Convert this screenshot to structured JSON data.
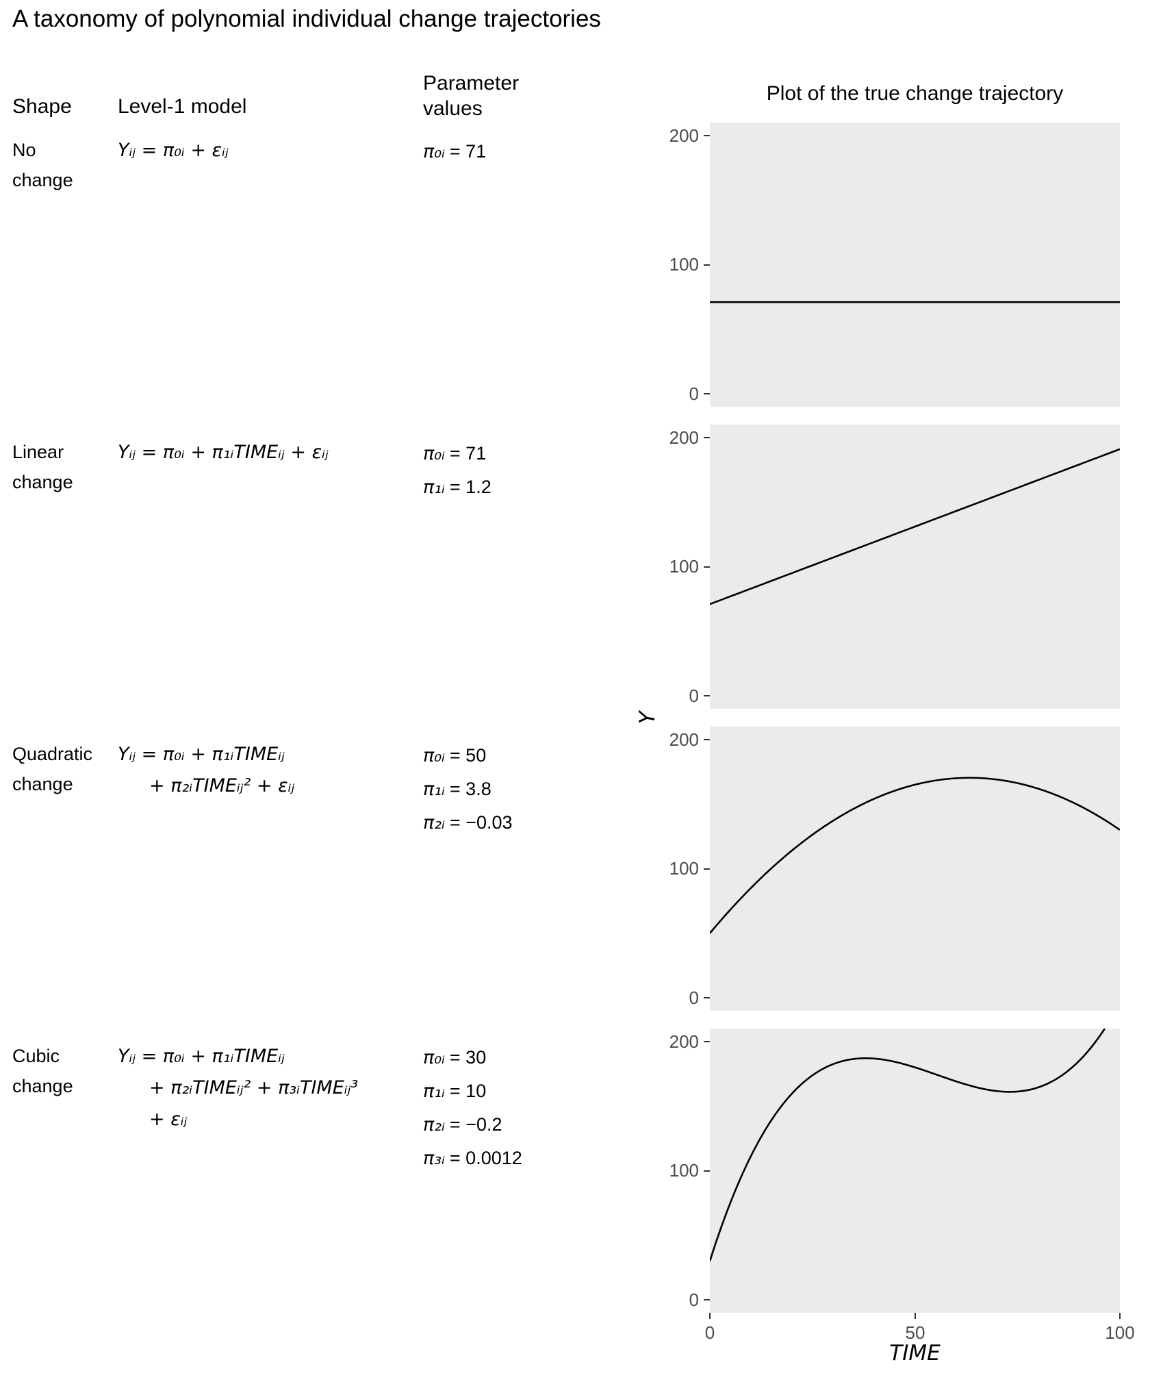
{
  "title": "A taxonomy of polynomial individual change trajectories",
  "headers": {
    "shape": "Shape",
    "model": "Level-1 model",
    "params_line1": "Parameter",
    "params_line2": "values"
  },
  "rows": [
    {
      "shape": "No change",
      "model": [
        "Yᵢⱼ = π₀ᵢ + εᵢⱼ"
      ],
      "params": [
        {
          "sym": "π₀ᵢ",
          "val": "= 71"
        }
      ]
    },
    {
      "shape": "Linear change",
      "model": [
        "Yᵢⱼ = π₀ᵢ + π₁ᵢTIMEᵢⱼ + εᵢⱼ"
      ],
      "params": [
        {
          "sym": "π₀ᵢ",
          "val": "= 71"
        },
        {
          "sym": "π₁ᵢ",
          "val": "= 1.2"
        }
      ]
    },
    {
      "shape": "Quadratic change",
      "model": [
        "Yᵢⱼ = π₀ᵢ + π₁ᵢTIMEᵢⱼ",
        "+ π₂ᵢTIMEᵢⱼ² + εᵢⱼ"
      ],
      "params": [
        {
          "sym": "π₀ᵢ",
          "val": "= 50"
        },
        {
          "sym": "π₁ᵢ",
          "val": "= 3.8"
        },
        {
          "sym": "π₂ᵢ",
          "val": "= −0.03"
        }
      ]
    },
    {
      "shape": "Cubic change",
      "model": [
        "Yᵢⱼ = π₀ᵢ + π₁ᵢTIMEᵢⱼ",
        "+ π₂ᵢTIMEᵢⱼ² + π₃ᵢTIMEᵢⱼ³",
        "+ εᵢⱼ"
      ],
      "params": [
        {
          "sym": "π₀ᵢ",
          "val": "= 30"
        },
        {
          "sym": "π₁ᵢ",
          "val": "= 10"
        },
        {
          "sym": "π₂ᵢ",
          "val": "= −0.2"
        },
        {
          "sym": "π₃ᵢ",
          "val": "= 0.0012"
        }
      ]
    }
  ],
  "plot": {
    "title": "Plot of the true change trajectory",
    "xlabel": "TIME",
    "ylabel": "Y",
    "x_tick_labels": [
      "0",
      "50",
      "100"
    ],
    "y_tick_labels": [
      "200",
      "100",
      "0"
    ],
    "x_domain": [
      0,
      100
    ],
    "y_domain": [
      -10,
      210
    ],
    "panel_bg": "#EBEBEB",
    "line_color": "#000000",
    "tick_color": "#333333",
    "tick_label_color": "#4D4D4D"
  },
  "chart_data": [
    {
      "type": "line",
      "name": "No change",
      "formula": "Y = 71",
      "coefficients": [
        71,
        0,
        0,
        0
      ],
      "x": [
        0,
        10,
        20,
        30,
        40,
        50,
        60,
        70,
        80,
        90,
        100
      ],
      "y": [
        71,
        71,
        71,
        71,
        71,
        71,
        71,
        71,
        71,
        71,
        71
      ],
      "xlabel": "TIME",
      "ylabel": "Y",
      "xlim": [
        0,
        100
      ],
      "ylim": [
        0,
        200
      ]
    },
    {
      "type": "line",
      "name": "Linear change",
      "formula": "Y = 71 + 1.2 TIME",
      "coefficients": [
        71,
        1.2,
        0,
        0
      ],
      "x": [
        0,
        10,
        20,
        30,
        40,
        50,
        60,
        70,
        80,
        90,
        100
      ],
      "y": [
        71,
        83,
        95,
        107,
        119,
        131,
        143,
        155,
        167,
        179,
        191
      ],
      "xlabel": "TIME",
      "ylabel": "Y",
      "xlim": [
        0,
        100
      ],
      "ylim": [
        0,
        200
      ]
    },
    {
      "type": "line",
      "name": "Quadratic change",
      "formula": "Y = 50 + 3.8 TIME − 0.03 TIME²",
      "coefficients": [
        50,
        3.8,
        -0.03,
        0
      ],
      "x": [
        0,
        10,
        20,
        30,
        40,
        50,
        60,
        70,
        80,
        90,
        100
      ],
      "y": [
        50,
        85,
        114,
        137,
        154,
        165,
        170,
        169,
        162,
        149,
        130
      ],
      "xlabel": "TIME",
      "ylabel": "Y",
      "xlim": [
        0,
        100
      ],
      "ylim": [
        0,
        200
      ]
    },
    {
      "type": "line",
      "name": "Cubic change",
      "formula": "Y = 30 + 10 TIME − 0.2 TIME² + 0.0012 TIME³",
      "coefficients": [
        30,
        10,
        -0.2,
        0.0012
      ],
      "x": [
        0,
        10,
        20,
        30,
        40,
        50,
        60,
        70,
        80,
        90,
        100
      ],
      "y": [
        30,
        111.2,
        159.6,
        182.4,
        186.8,
        180,
        169.2,
        161.6,
        164.4,
        184.8,
        230
      ],
      "xlabel": "TIME",
      "ylabel": "Y",
      "xlim": [
        0,
        100
      ],
      "ylim": [
        0,
        200
      ]
    }
  ]
}
